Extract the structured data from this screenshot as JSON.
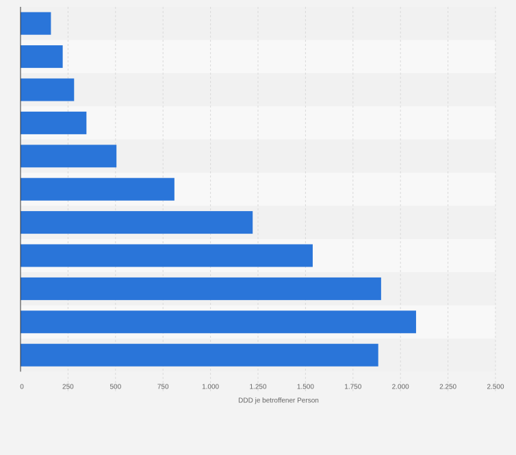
{
  "chart_data": {
    "type": "bar",
    "orientation": "horizontal",
    "categories": [
      "",
      "",
      "",
      "",
      "",
      "",
      "",
      "",
      "",
      "",
      ""
    ],
    "values": [
      160,
      222,
      282,
      347,
      505,
      810,
      1222,
      1538,
      1898,
      2082,
      1883
    ],
    "xlabel": "DDD je betroffener Person",
    "ylabel": "",
    "xlim": [
      0,
      2500
    ],
    "xticks": [
      0,
      250,
      500,
      750,
      1000,
      1250,
      1500,
      1750,
      2000,
      2250,
      2500
    ],
    "xtick_labels": [
      "0",
      "250",
      "500",
      "750",
      "1.000",
      "1.250",
      "1.500",
      "1.750",
      "2.000",
      "2.250",
      "2.500"
    ],
    "grid": true,
    "legend": "none",
    "colors": {
      "bar": "#2a75d9",
      "band_light": "#f8f8f8",
      "band_dark": "#f1f1f1",
      "grid": "#d9d9d9",
      "axis": "#333333",
      "tick_text": "#666666"
    }
  }
}
